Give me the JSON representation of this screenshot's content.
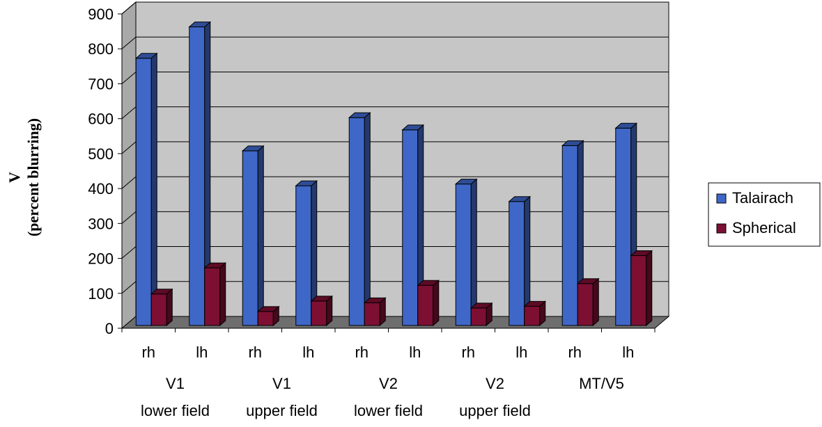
{
  "chart_data": {
    "type": "bar",
    "style": "3d-clustered-column",
    "ylabel_line1": "V",
    "ylabel_line2": "(percent blurring)",
    "ylim": [
      0,
      900
    ],
    "yticks": [
      0,
      100,
      200,
      300,
      400,
      500,
      600,
      700,
      800,
      900
    ],
    "grid": true,
    "legend_position": "right",
    "categories": [
      "rh",
      "lh",
      "rh",
      "lh",
      "rh",
      "lh",
      "rh",
      "lh",
      "rh",
      "lh"
    ],
    "groups": [
      {
        "line1": "V1",
        "line2": "lower field"
      },
      {
        "line1": "V1",
        "line2": "upper field"
      },
      {
        "line1": "V2",
        "line2": "lower field"
      },
      {
        "line1": "V2",
        "line2": "upper field"
      },
      {
        "line1": "MT/V5",
        "line2": ""
      }
    ],
    "series": [
      {
        "name": "Talairach",
        "color": "#3f67c8",
        "values": [
          765,
          855,
          500,
          400,
          595,
          560,
          405,
          355,
          515,
          565
        ]
      },
      {
        "name": "Spherical",
        "color": "#7d0f33",
        "values": [
          90,
          165,
          40,
          70,
          65,
          115,
          50,
          55,
          120,
          200
        ]
      }
    ]
  }
}
